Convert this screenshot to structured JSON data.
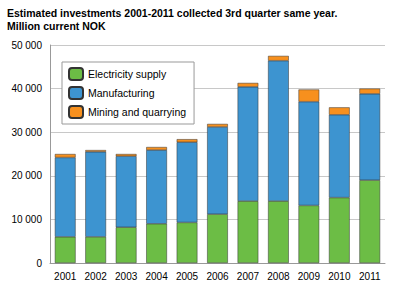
{
  "chart_data": {
    "type": "bar",
    "stacked": true,
    "title": "Estimated investments 2001-2011 collected 3rd quarter same year.",
    "subtitle": "Million current NOK",
    "categories": [
      "2001",
      "2002",
      "2003",
      "2004",
      "2005",
      "2006",
      "2007",
      "2008",
      "2009",
      "2010",
      "2011"
    ],
    "series": [
      {
        "name": "Electricity supply",
        "color": "#6cbd45",
        "values": [
          6000,
          6000,
          8200,
          9000,
          9300,
          11200,
          14200,
          14200,
          13200,
          15000,
          19000
        ]
      },
      {
        "name": "Manufacturing",
        "color": "#3d94d0",
        "values": [
          18200,
          19500,
          16300,
          16900,
          18400,
          20000,
          26200,
          32200,
          23800,
          19000,
          19800
        ]
      },
      {
        "name": "Mining and quarrying",
        "color": "#f7901e",
        "values": [
          800,
          400,
          500,
          700,
          700,
          700,
          900,
          1100,
          2800,
          1700,
          1200
        ]
      }
    ],
    "ylim": [
      0,
      50000
    ],
    "yticks": [
      0,
      {
        "value": 10000,
        "label": "10 000"
      },
      {
        "value": 20000,
        "label": "20 000"
      },
      {
        "value": 30000,
        "label": "30 000"
      },
      {
        "value": 40000,
        "label": "40 000"
      },
      {
        "value": 50000,
        "label": "50 000"
      }
    ],
    "grid": true,
    "legend": "top-left"
  }
}
